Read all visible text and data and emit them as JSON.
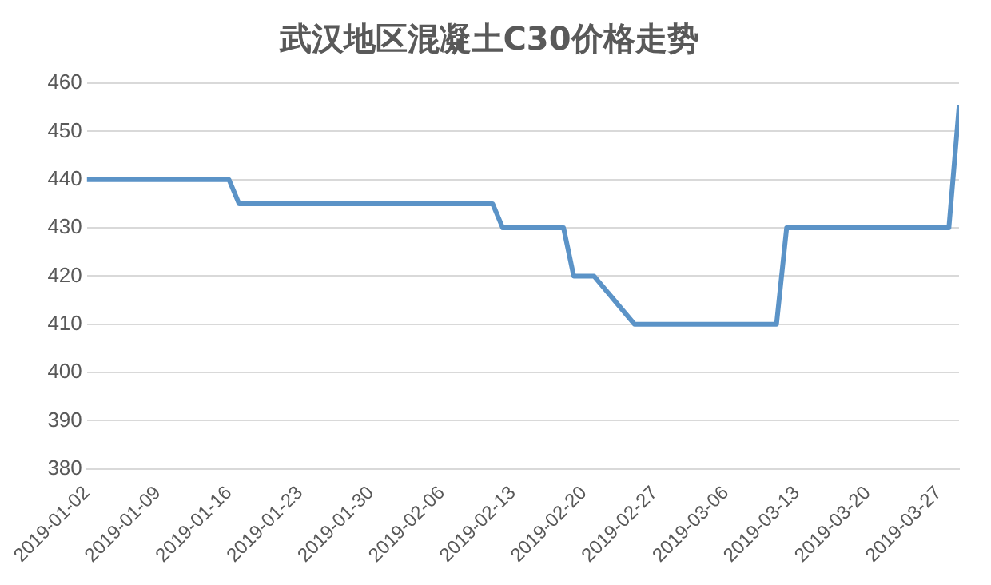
{
  "chart_data": {
    "type": "line",
    "title": "武汉地区混凝土C30价格走势",
    "x": [
      "2019-01-02",
      "2019-01-16",
      "2019-01-17",
      "2019-02-11",
      "2019-02-12",
      "2019-02-18",
      "2019-02-19",
      "2019-02-21",
      "2019-02-25",
      "2019-03-11",
      "2019-03-12",
      "2019-03-28",
      "2019-03-29"
    ],
    "series": [
      {
        "color": "#5b93c7",
        "values": [
          440,
          440,
          435,
          435,
          430,
          430,
          420,
          420,
          410,
          410,
          430,
          430,
          455
        ]
      }
    ],
    "xlim": [
      "2019-01-02",
      "2019-03-29"
    ],
    "xticks": [
      "2019-01-02",
      "2019-01-09",
      "2019-01-16",
      "2019-01-23",
      "2019-01-30",
      "2019-02-06",
      "2019-02-13",
      "2019-02-20",
      "2019-02-27",
      "2019-03-06",
      "2019-03-13",
      "2019-03-20",
      "2019-03-27"
    ],
    "ylim": [
      380,
      460
    ],
    "yticks": [
      380,
      390,
      400,
      410,
      420,
      430,
      440,
      450,
      460
    ],
    "grid": "y",
    "legend": false,
    "marker": "none",
    "line_style": "solid"
  }
}
